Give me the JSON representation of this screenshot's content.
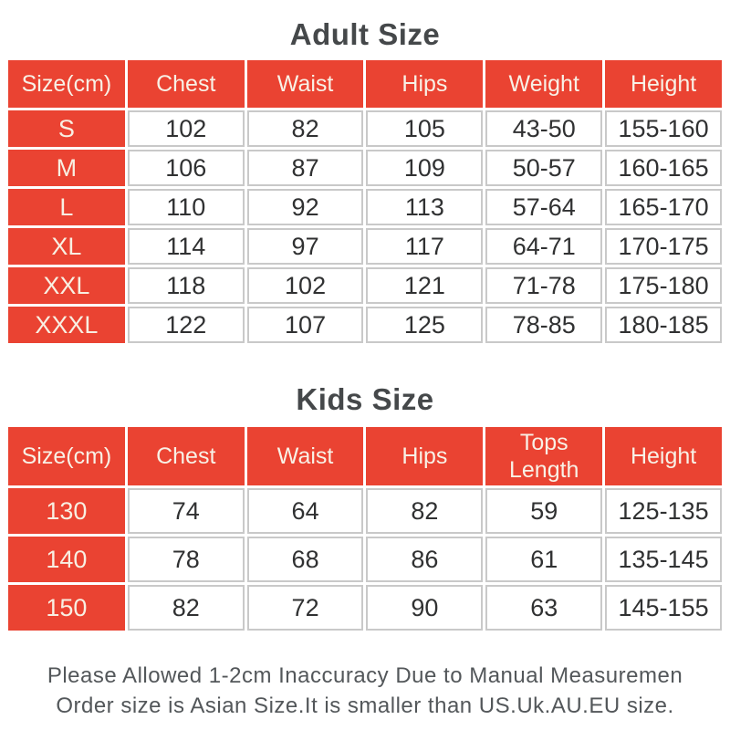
{
  "adult": {
    "title": "Adult Size",
    "headers": [
      "Size(cm)",
      "Chest",
      "Waist",
      "Hips",
      "Weight",
      "Height"
    ],
    "rows": [
      [
        "S",
        "102",
        "82",
        "105",
        "43-50",
        "155-160"
      ],
      [
        "M",
        "106",
        "87",
        "109",
        "50-57",
        "160-165"
      ],
      [
        "L",
        "110",
        "92",
        "113",
        "57-64",
        "165-170"
      ],
      [
        "XL",
        "114",
        "97",
        "117",
        "64-71",
        "170-175"
      ],
      [
        "XXL",
        "118",
        "102",
        "121",
        "71-78",
        "175-180"
      ],
      [
        "XXXL",
        "122",
        "107",
        "125",
        "78-85",
        "180-185"
      ]
    ]
  },
  "kids": {
    "title": "Kids Size",
    "headers": [
      "Size(cm)",
      "Chest",
      "Waist",
      "Hips",
      "Tops Length",
      "Height"
    ],
    "rows": [
      [
        "130",
        "74",
        "64",
        "82",
        "59",
        "125-135"
      ],
      [
        "140",
        "78",
        "68",
        "86",
        "61",
        "135-145"
      ],
      [
        "150",
        "82",
        "72",
        "90",
        "63",
        "145-155"
      ]
    ]
  },
  "footer": {
    "line1": "Please Allowed 1-2cm Inaccuracy Due to Manual Measuremen",
    "line2": "Order size is Asian Size.It is smaller than US.Uk.AU.EU size."
  },
  "colors": {
    "accent_red": "#ea4332",
    "header_text": "#f8f1e6",
    "cell_text": "#303132",
    "cell_border": "#c9c9c9",
    "title_text": "#45484a",
    "footer_text": "#53575a"
  },
  "chart_data": [
    {
      "type": "table",
      "title": "Adult Size",
      "columns": [
        "Size(cm)",
        "Chest",
        "Waist",
        "Hips",
        "Weight",
        "Height"
      ],
      "rows": [
        [
          "S",
          102,
          82,
          105,
          "43-50",
          "155-160"
        ],
        [
          "M",
          106,
          87,
          109,
          "50-57",
          "160-165"
        ],
        [
          "L",
          110,
          92,
          113,
          "57-64",
          "165-170"
        ],
        [
          "XL",
          114,
          97,
          117,
          "64-71",
          "170-175"
        ],
        [
          "XXL",
          118,
          102,
          121,
          "71-78",
          "175-180"
        ],
        [
          "XXXL",
          122,
          107,
          125,
          "78-85",
          "180-185"
        ]
      ]
    },
    {
      "type": "table",
      "title": "Kids Size",
      "columns": [
        "Size(cm)",
        "Chest",
        "Waist",
        "Hips",
        "Tops Length",
        "Height"
      ],
      "rows": [
        [
          "130",
          74,
          64,
          82,
          59,
          "125-135"
        ],
        [
          "140",
          78,
          68,
          86,
          61,
          "135-145"
        ],
        [
          "150",
          82,
          72,
          90,
          63,
          "145-155"
        ]
      ]
    }
  ]
}
